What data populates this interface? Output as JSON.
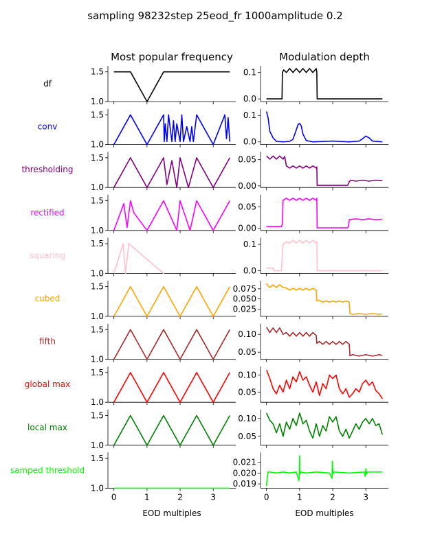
{
  "suptitle": "sampling 98232step 25eod_fr 1000amplitude 0.2",
  "column_titles": [
    "Most popular frequency",
    "Modulation depth"
  ],
  "xlabel": "EOD multiples",
  "chart_data": {
    "type": "line",
    "x_ticks": [
      0,
      1,
      2,
      3
    ],
    "xlim": [
      -0.18,
      3.68
    ],
    "rows": [
      {
        "label": "df",
        "color": "#000000",
        "freq": {
          "ylim": [
            1.0,
            1.6
          ],
          "yticks": [
            "1.0",
            "1.5"
          ],
          "x": [
            0,
            0.5,
            1.0,
            1.5,
            3.5
          ],
          "y": [
            1.5,
            1.5,
            1.0,
            1.5,
            1.5
          ]
        },
        "depth": {
          "ylim": [
            -0.01,
            0.125
          ],
          "yticks": [
            "0.0",
            "0.1"
          ],
          "x": [
            0,
            0.47,
            0.48,
            0.52,
            0.6,
            0.7,
            0.8,
            0.9,
            1.0,
            1.1,
            1.2,
            1.3,
            1.4,
            1.5,
            1.52,
            1.53,
            3.5
          ],
          "y": [
            0,
            0,
            0.1,
            0.11,
            0.1,
            0.115,
            0.1,
            0.115,
            0.1,
            0.115,
            0.1,
            0.115,
            0.1,
            0.115,
            0.1,
            0,
            0
          ]
        }
      },
      {
        "label": "conv",
        "color": "#0000ff",
        "freq": {
          "ylim": [
            1.0,
            1.6
          ],
          "yticks": [
            "1.0",
            "1.5"
          ],
          "x": [
            0,
            0.5,
            1.0,
            1.5,
            1.52,
            1.55,
            1.6,
            1.65,
            1.75,
            1.8,
            1.85,
            1.9,
            2.0,
            2.05,
            2.1,
            2.2,
            2.3,
            2.35,
            2.4,
            2.5,
            3.0,
            3.35,
            3.4,
            3.45,
            3.5
          ],
          "y": [
            1.0,
            1.5,
            1.0,
            1.5,
            1.05,
            1.35,
            1.05,
            1.5,
            1.05,
            1.4,
            1.05,
            1.35,
            1.05,
            1.5,
            1.05,
            1.3,
            1.05,
            1.3,
            1.05,
            1.5,
            1.0,
            1.5,
            1.1,
            1.45,
            1.05
          ]
        },
        "depth": {
          "ylim": [
            -0.01,
            0.125
          ],
          "yticks": [
            "0.0",
            "0.1"
          ],
          "x": [
            0,
            0.05,
            0.1,
            0.2,
            0.3,
            0.5,
            0.7,
            0.8,
            0.9,
            0.95,
            1.0,
            1.05,
            1.1,
            1.2,
            1.4,
            2.0,
            2.5,
            2.8,
            2.9,
            3.0,
            3.1,
            3.2,
            3.5
          ],
          "y": [
            0.115,
            0.09,
            0.04,
            0.015,
            0.002,
            0,
            0.002,
            0.01,
            0.045,
            0.065,
            0.07,
            0.06,
            0.03,
            0.005,
            0,
            0.003,
            0,
            0.003,
            0.012,
            0.022,
            0.015,
            0.003,
            0
          ]
        }
      },
      {
        "label": "thresholding",
        "color": "#800080",
        "freq": {
          "ylim": [
            1.0,
            1.6
          ],
          "yticks": [
            "1.0",
            "1.5"
          ],
          "x": [
            0,
            0.5,
            1.0,
            1.5,
            1.6,
            1.75,
            1.9,
            2.0,
            2.25,
            2.5,
            3.0,
            3.5
          ],
          "y": [
            1.0,
            1.5,
            1.0,
            1.5,
            1.05,
            1.45,
            1.0,
            1.5,
            1.0,
            1.5,
            1.0,
            1.5
          ]
        },
        "depth": {
          "ylim": [
            -0.003,
            0.065
          ],
          "yticks": [
            "0.00",
            "0.05"
          ],
          "x": [
            0,
            0.1,
            0.2,
            0.3,
            0.4,
            0.5,
            0.55,
            0.6,
            0.7,
            0.8,
            0.9,
            1.0,
            1.1,
            1.2,
            1.3,
            1.4,
            1.5,
            1.52,
            1.53,
            2.0,
            2.45,
            2.5,
            2.55,
            2.7,
            2.9,
            3.1,
            3.3,
            3.5
          ],
          "y": [
            0.057,
            0.051,
            0.057,
            0.051,
            0.057,
            0.051,
            0.056,
            0.038,
            0.034,
            0.038,
            0.034,
            0.038,
            0.034,
            0.038,
            0.034,
            0.038,
            0.034,
            0.036,
            0.001,
            0.001,
            0.001,
            0.008,
            0.011,
            0.009,
            0.011,
            0.009,
            0.011,
            0.01
          ]
        }
      },
      {
        "label": "rectified",
        "color": "#ff00ff",
        "freq": {
          "ylim": [
            1.0,
            1.6
          ],
          "yticks": [
            "1.0",
            "1.5"
          ],
          "x": [
            0,
            0.2,
            0.3,
            0.4,
            0.5,
            0.6,
            1.0,
            1.5,
            1.9,
            2.0,
            2.3,
            2.5,
            3.0,
            3.5
          ],
          "y": [
            1.0,
            1.3,
            1.45,
            1.05,
            1.5,
            1.3,
            1.0,
            1.5,
            1.0,
            1.5,
            1.0,
            1.5,
            1.0,
            1.5
          ]
        },
        "depth": {
          "ylim": [
            -0.005,
            0.078
          ],
          "yticks": [
            "0.00",
            "0.05"
          ],
          "x": [
            0,
            0.45,
            0.48,
            0.5,
            0.6,
            0.7,
            0.8,
            0.9,
            1.0,
            1.1,
            1.2,
            1.3,
            1.4,
            1.5,
            1.52,
            1.53,
            2.45,
            2.48,
            2.5,
            2.7,
            2.9,
            3.1,
            3.3,
            3.5
          ],
          "y": [
            0.004,
            0.004,
            0.01,
            0.065,
            0.07,
            0.065,
            0.07,
            0.065,
            0.07,
            0.065,
            0.07,
            0.065,
            0.07,
            0.065,
            0.07,
            0.001,
            0.001,
            0.006,
            0.02,
            0.022,
            0.02,
            0.022,
            0.02,
            0.021
          ]
        }
      },
      {
        "label": "squaring",
        "color": "#ffc0cb",
        "freq": {
          "ylim": [
            1.0,
            1.6
          ],
          "yticks": [
            "1.0",
            "1.5"
          ],
          "x": [
            0,
            0.28,
            0.35,
            0.45,
            1.5,
            1.52
          ],
          "y": [
            1.0,
            1.5,
            1.0,
            1.5,
            1.0,
            1.0
          ]
        },
        "depth": {
          "ylim": [
            -0.01,
            0.125
          ],
          "yticks": [
            "0.0",
            "0.1"
          ],
          "x": [
            0,
            0.2,
            0.22,
            0.25,
            0.45,
            0.48,
            0.5,
            0.6,
            0.7,
            0.8,
            0.9,
            1.0,
            1.1,
            1.2,
            1.3,
            1.4,
            1.5,
            1.52,
            1.53,
            3.5
          ],
          "y": [
            0.01,
            0.01,
            0.0,
            0.0,
            0.0,
            0.06,
            0.1,
            0.11,
            0.105,
            0.115,
            0.105,
            0.115,
            0.105,
            0.115,
            0.105,
            0.115,
            0.105,
            0.11,
            0.0,
            0.0
          ]
        }
      },
      {
        "label": "cubed",
        "color": "#ffa500",
        "freq": {
          "ylim": [
            1.0,
            1.6
          ],
          "yticks": [
            "1.0",
            "1.5"
          ],
          "x": [
            0,
            0.5,
            1.0,
            1.5,
            2.0,
            2.5,
            3.0,
            3.5
          ],
          "y": [
            1.0,
            1.5,
            1.0,
            1.5,
            1.0,
            1.5,
            1.0,
            1.5
          ]
        },
        "depth": {
          "ylim": [
            0.007,
            0.095
          ],
          "yticks": [
            "0.025",
            "0.050",
            "0.075"
          ],
          "x": [
            0,
            0.1,
            0.2,
            0.3,
            0.4,
            0.5,
            0.6,
            0.7,
            0.8,
            0.9,
            1.0,
            1.1,
            1.2,
            1.3,
            1.4,
            1.5,
            1.52,
            1.6,
            1.7,
            1.8,
            1.9,
            2.0,
            2.1,
            2.2,
            2.3,
            2.4,
            2.5,
            2.52,
            2.6,
            2.8,
            3.0,
            3.2,
            3.4,
            3.5
          ],
          "y": [
            0.088,
            0.078,
            0.085,
            0.078,
            0.085,
            0.078,
            0.077,
            0.072,
            0.076,
            0.072,
            0.076,
            0.072,
            0.076,
            0.072,
            0.076,
            0.072,
            0.045,
            0.047,
            0.042,
            0.045,
            0.042,
            0.045,
            0.042,
            0.045,
            0.042,
            0.045,
            0.042,
            0.014,
            0.012,
            0.014,
            0.012,
            0.014,
            0.012,
            0.013
          ]
        }
      },
      {
        "label": "fifth",
        "color": "#a52a2a",
        "freq": {
          "ylim": [
            1.0,
            1.6
          ],
          "yticks": [
            "1.0",
            "1.5"
          ],
          "x": [
            0,
            0.5,
            1.0,
            1.5,
            2.0,
            2.5,
            3.0,
            3.5
          ],
          "y": [
            1.0,
            1.5,
            1.0,
            1.5,
            1.0,
            1.5,
            1.0,
            1.5
          ]
        },
        "depth": {
          "ylim": [
            0.03,
            0.13
          ],
          "yticks": [
            "0.05",
            "0.10"
          ],
          "x": [
            0,
            0.1,
            0.2,
            0.3,
            0.4,
            0.5,
            0.6,
            0.7,
            0.8,
            0.9,
            1.0,
            1.1,
            1.2,
            1.3,
            1.4,
            1.5,
            1.52,
            1.6,
            1.7,
            1.8,
            1.9,
            2.0,
            2.1,
            2.2,
            2.3,
            2.4,
            2.5,
            2.52,
            2.6,
            2.8,
            3.0,
            3.2,
            3.4,
            3.5
          ],
          "y": [
            0.12,
            0.105,
            0.118,
            0.105,
            0.118,
            0.1,
            0.105,
            0.095,
            0.105,
            0.095,
            0.105,
            0.095,
            0.105,
            0.095,
            0.105,
            0.097,
            0.075,
            0.08,
            0.072,
            0.08,
            0.072,
            0.08,
            0.072,
            0.08,
            0.072,
            0.08,
            0.072,
            0.04,
            0.043,
            0.039,
            0.043,
            0.039,
            0.043,
            0.041
          ]
        }
      },
      {
        "label": "global max",
        "color": "#ff0000",
        "freq": {
          "ylim": [
            1.0,
            1.6
          ],
          "yticks": [
            "1.0",
            "1.5"
          ],
          "x": [
            0,
            0.5,
            1.0,
            1.5,
            2.0,
            2.5,
            3.0,
            3.5
          ],
          "y": [
            1.0,
            1.5,
            1.0,
            1.5,
            1.0,
            1.5,
            1.0,
            1.5
          ]
        },
        "depth": {
          "ylim": [
            0.02,
            0.125
          ],
          "yticks": [
            "0.05",
            "0.10"
          ],
          "x": [
            0,
            0.1,
            0.2,
            0.3,
            0.4,
            0.5,
            0.6,
            0.7,
            0.8,
            0.9,
            1.0,
            1.1,
            1.2,
            1.3,
            1.4,
            1.5,
            1.6,
            1.7,
            1.8,
            1.9,
            2.0,
            2.1,
            2.2,
            2.3,
            2.4,
            2.5,
            2.6,
            2.7,
            2.8,
            2.9,
            3.0,
            3.1,
            3.2,
            3.3,
            3.4,
            3.5
          ],
          "y": [
            0.115,
            0.09,
            0.06,
            0.045,
            0.07,
            0.05,
            0.085,
            0.06,
            0.095,
            0.08,
            0.11,
            0.085,
            0.095,
            0.07,
            0.05,
            0.08,
            0.04,
            0.075,
            0.06,
            0.1,
            0.09,
            0.1,
            0.06,
            0.045,
            0.06,
            0.035,
            0.045,
            0.06,
            0.05,
            0.075,
            0.085,
            0.07,
            0.08,
            0.055,
            0.045,
            0.03
          ]
        }
      },
      {
        "label": "local max",
        "color": "#008000",
        "freq": {
          "ylim": [
            1.0,
            1.6
          ],
          "yticks": [
            "1.0",
            "1.5"
          ],
          "x": [
            0,
            0.5,
            1.0,
            1.5,
            2.0,
            2.5,
            3.0,
            3.5
          ],
          "y": [
            1.0,
            1.5,
            1.0,
            1.5,
            1.0,
            1.5,
            1.0,
            1.5
          ]
        },
        "depth": {
          "ylim": [
            0.025,
            0.125
          ],
          "yticks": [
            "0.05",
            "0.10"
          ],
          "x": [
            0,
            0.1,
            0.2,
            0.3,
            0.4,
            0.5,
            0.6,
            0.7,
            0.8,
            0.9,
            1.0,
            1.1,
            1.2,
            1.3,
            1.4,
            1.5,
            1.6,
            1.7,
            1.8,
            1.9,
            2.0,
            2.1,
            2.2,
            2.3,
            2.4,
            2.5,
            2.6,
            2.7,
            2.8,
            2.9,
            3.0,
            3.1,
            3.2,
            3.3,
            3.4,
            3.5
          ],
          "y": [
            0.115,
            0.095,
            0.085,
            0.06,
            0.085,
            0.05,
            0.09,
            0.07,
            0.1,
            0.08,
            0.115,
            0.085,
            0.095,
            0.065,
            0.045,
            0.085,
            0.05,
            0.08,
            0.065,
            0.105,
            0.09,
            0.105,
            0.065,
            0.05,
            0.07,
            0.045,
            0.065,
            0.085,
            0.07,
            0.09,
            0.1,
            0.085,
            0.1,
            0.08,
            0.085,
            0.055
          ]
        }
      },
      {
        "label": "samped threshold",
        "color": "#00ff00",
        "freq": {
          "ylim": [
            1.0,
            1.6
          ],
          "yticks": [
            "1.0",
            "1.5"
          ],
          "x": [
            0,
            3.5
          ],
          "y": [
            1.0,
            1.0
          ]
        },
        "depth": {
          "ylim": [
            0.0186,
            0.0219
          ],
          "yticks": [
            "0.019",
            "0.020",
            "0.021"
          ],
          "x": [
            0,
            0.02,
            0.05,
            0.1,
            0.3,
            0.5,
            0.7,
            0.9,
            0.98,
            0.99,
            1.0,
            1.01,
            1.02,
            1.2,
            1.5,
            1.9,
            1.98,
            1.99,
            2.0,
            2.01,
            2.02,
            2.5,
            2.95,
            2.98,
            3.0,
            3.02,
            3.05,
            3.5
          ],
          "y": [
            0.0188,
            0.0195,
            0.0201,
            0.0201,
            0.02,
            0.0201,
            0.02,
            0.0201,
            0.0193,
            0.0198,
            0.0216,
            0.0199,
            0.0201,
            0.02,
            0.0201,
            0.02,
            0.0195,
            0.0211,
            0.0204,
            0.0199,
            0.0201,
            0.02,
            0.0201,
            0.0197,
            0.0204,
            0.0199,
            0.0201,
            0.0201
          ]
        }
      }
    ]
  }
}
